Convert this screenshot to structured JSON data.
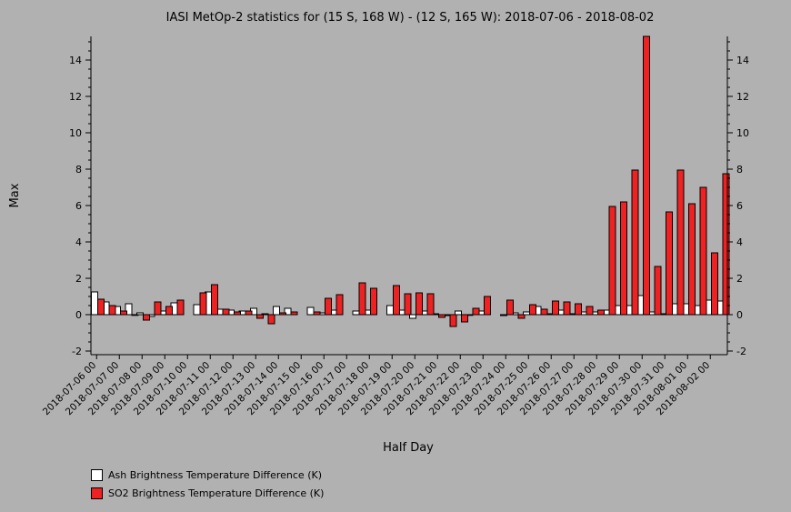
{
  "chart_data": {
    "type": "bar",
    "title": "IASI MetOp-2 statistics for (15 S, 168 W) - (12 S, 165 W): 2018-07-06 - 2018-08-02",
    "xlabel": "Half Day",
    "ylabel": "Max",
    "ylim": [
      -2.2,
      15.3
    ],
    "yticks": [
      -2,
      0,
      2,
      4,
      6,
      8,
      10,
      12,
      14
    ],
    "grid": false,
    "legend_position": "bottom-left",
    "x_tick_labels": [
      "2018-07-06 00",
      "2018-07-07 00",
      "2018-07-08 00",
      "2018-07-09 00",
      "2018-07-10 00",
      "2018-07-11 00",
      "2018-07-12 00",
      "2018-07-13 00",
      "2018-07-14 00",
      "2018-07-15 00",
      "2018-07-16 00",
      "2018-07-17 00",
      "2018-07-18 00",
      "2018-07-19 00",
      "2018-07-20 00",
      "2018-07-21 00",
      "2018-07-22 00",
      "2018-07-23 00",
      "2018-07-24 00",
      "2018-07-25 00",
      "2018-07-26 00",
      "2018-07-27 00",
      "2018-07-28 00",
      "2018-07-29 00",
      "2018-07-30 00",
      "2018-07-31 00",
      "2018-08-01 00",
      "2018-08-02 00"
    ],
    "series": [
      {
        "name": "Ash Brightness Temperature Difference (K)",
        "color": "#ffffff",
        "values": [
          1.25,
          0.7,
          0.45,
          0.6,
          0.1,
          -0.1,
          0.2,
          0.65,
          null,
          0.55,
          1.25,
          0.3,
          0.25,
          0.2,
          0.35,
          0.05,
          0.45,
          0.35,
          null,
          0.4,
          0.1,
          0.25,
          null,
          0.2,
          0.25,
          null,
          0.5,
          0.25,
          -0.2,
          0.2,
          0.05,
          -0.05,
          0.2,
          0.0,
          0.2,
          null,
          -0.05,
          0.1,
          0.15,
          0.45,
          0.05,
          0.25,
          0.05,
          0.15,
          0.15,
          0.25,
          0.5,
          0.5,
          1.05,
          0.15,
          0.05,
          0.6,
          0.6,
          0.5,
          0.8,
          0.75
        ]
      },
      {
        "name": "SO2 Brightness Temperature Difference (K)",
        "color": "#ee2222",
        "values": [
          0.85,
          0.5,
          0.2,
          0.0,
          -0.3,
          0.7,
          0.45,
          0.8,
          null,
          1.2,
          1.65,
          0.3,
          0.15,
          0.2,
          -0.2,
          -0.5,
          0.1,
          0.15,
          null,
          0.15,
          0.9,
          1.1,
          null,
          1.75,
          1.45,
          null,
          1.6,
          1.15,
          1.2,
          1.15,
          -0.15,
          -0.65,
          -0.4,
          0.35,
          1.0,
          null,
          0.8,
          -0.2,
          0.55,
          0.3,
          0.75,
          0.7,
          0.6,
          0.45,
          0.25,
          5.95,
          6.2,
          7.95,
          15.3,
          2.65,
          5.65,
          7.95,
          6.1,
          7.0,
          3.4,
          7.75
        ]
      }
    ]
  }
}
